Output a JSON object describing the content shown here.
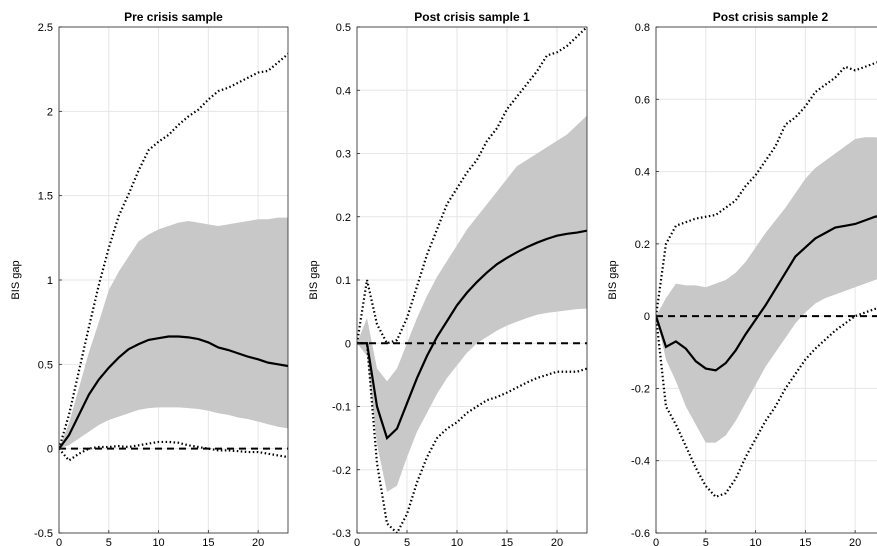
{
  "chart_data": [
    {
      "type": "line",
      "title": "Pre crisis sample",
      "ylabel": "BIS gap",
      "xlabel": "",
      "xlim": [
        0,
        23
      ],
      "ylim": [
        -0.5,
        2.5
      ],
      "xticks": [
        0,
        5,
        10,
        15,
        20
      ],
      "yticks": [
        -0.5,
        0,
        0.5,
        1,
        1.5,
        2,
        2.5
      ],
      "ytick_labels": [
        "-0.5",
        "0",
        "0.5",
        "1",
        "1.5",
        "2",
        "2.5"
      ],
      "grid": true,
      "x": [
        0,
        1,
        2,
        3,
        4,
        5,
        6,
        7,
        8,
        9,
        10,
        11,
        12,
        13,
        14,
        15,
        16,
        17,
        18,
        19,
        20,
        21,
        22,
        23
      ],
      "median": [
        0,
        0.08,
        0.2,
        0.32,
        0.41,
        0.48,
        0.54,
        0.59,
        0.62,
        0.645,
        0.655,
        0.665,
        0.665,
        0.66,
        0.65,
        0.63,
        0.6,
        0.585,
        0.565,
        0.545,
        0.53,
        0.51,
        0.5,
        0.49
      ],
      "band_lower": [
        0,
        0.02,
        0.06,
        0.1,
        0.14,
        0.17,
        0.19,
        0.21,
        0.23,
        0.24,
        0.245,
        0.245,
        0.245,
        0.24,
        0.235,
        0.225,
        0.21,
        0.2,
        0.185,
        0.175,
        0.16,
        0.145,
        0.13,
        0.12
      ],
      "band_upper": [
        0,
        0.15,
        0.36,
        0.57,
        0.75,
        0.94,
        1.05,
        1.14,
        1.23,
        1.27,
        1.3,
        1.32,
        1.34,
        1.35,
        1.34,
        1.33,
        1.32,
        1.33,
        1.34,
        1.35,
        1.36,
        1.36,
        1.37,
        1.37
      ],
      "outer_lower": [
        0,
        -0.07,
        -0.03,
        0,
        0.01,
        0.01,
        0.015,
        0.01,
        0.02,
        0.03,
        0.04,
        0.04,
        0.035,
        0.02,
        0.01,
        0,
        -0.01,
        -0.01,
        -0.015,
        -0.02,
        -0.02,
        -0.03,
        -0.04,
        -0.05
      ],
      "outer_upper": [
        0,
        0.2,
        0.46,
        0.72,
        0.97,
        1.19,
        1.38,
        1.51,
        1.65,
        1.77,
        1.82,
        1.86,
        1.92,
        1.97,
        2.01,
        2.07,
        2.12,
        2.14,
        2.17,
        2.2,
        2.23,
        2.24,
        2.29,
        2.34
      ],
      "reference": 0
    },
    {
      "type": "line",
      "title": "Post crisis sample 1",
      "ylabel": "BIS gap",
      "xlabel": "",
      "xlim": [
        0,
        23
      ],
      "ylim": [
        -0.3,
        0.5
      ],
      "xticks": [
        0,
        5,
        10,
        15,
        20
      ],
      "yticks": [
        -0.3,
        -0.2,
        -0.1,
        0,
        0.1,
        0.2,
        0.3,
        0.4,
        0.5
      ],
      "ytick_labels": [
        "-0.3",
        "-0.2",
        "-0.1",
        "0",
        "0.1",
        "0.2",
        "0.3",
        "0.4",
        "0.5"
      ],
      "grid": true,
      "x": [
        0,
        1,
        2,
        3,
        4,
        5,
        6,
        7,
        8,
        9,
        10,
        11,
        12,
        13,
        14,
        15,
        16,
        17,
        18,
        19,
        20,
        21,
        22,
        23
      ],
      "median": [
        0,
        0,
        -0.1,
        -0.15,
        -0.135,
        -0.095,
        -0.055,
        -0.02,
        0.01,
        0.035,
        0.06,
        0.08,
        0.097,
        0.112,
        0.125,
        0.135,
        0.144,
        0.152,
        0.159,
        0.165,
        0.17,
        0.173,
        0.175,
        0.178
      ],
      "band_lower": [
        0,
        -0.02,
        -0.16,
        -0.235,
        -0.225,
        -0.18,
        -0.14,
        -0.11,
        -0.08,
        -0.055,
        -0.035,
        -0.015,
        0,
        0.01,
        0.02,
        0.028,
        0.034,
        0.04,
        0.045,
        0.048,
        0.05,
        0.052,
        0.054,
        0.055
      ],
      "band_upper": [
        0,
        0.04,
        -0.04,
        -0.06,
        -0.04,
        0,
        0.04,
        0.075,
        0.105,
        0.13,
        0.155,
        0.18,
        0.2,
        0.22,
        0.24,
        0.26,
        0.28,
        0.29,
        0.3,
        0.31,
        0.32,
        0.33,
        0.345,
        0.36
      ],
      "outer_lower": [
        0,
        0,
        -0.19,
        -0.285,
        -0.3,
        -0.27,
        -0.22,
        -0.18,
        -0.15,
        -0.135,
        -0.125,
        -0.11,
        -0.1,
        -0.09,
        -0.085,
        -0.078,
        -0.07,
        -0.062,
        -0.055,
        -0.05,
        -0.045,
        -0.045,
        -0.045,
        -0.04
      ],
      "outer_upper": [
        0,
        0.1,
        0.03,
        0,
        0.005,
        0.04,
        0.09,
        0.14,
        0.18,
        0.22,
        0.245,
        0.27,
        0.29,
        0.32,
        0.34,
        0.37,
        0.39,
        0.41,
        0.43,
        0.455,
        0.46,
        0.47,
        0.485,
        0.5
      ],
      "reference": 0
    },
    {
      "type": "line",
      "title": "Post crisis sample 2",
      "ylabel": "BIS gap",
      "xlabel": "",
      "xlim": [
        0,
        23
      ],
      "ylim": [
        -0.6,
        0.8
      ],
      "xticks": [
        0,
        5,
        10,
        15,
        20
      ],
      "yticks": [
        -0.6,
        -0.4,
        -0.2,
        0,
        0.2,
        0.4,
        0.6,
        0.8
      ],
      "ytick_labels": [
        "-0.6",
        "-0.4",
        "-0.2",
        "0",
        "0.2",
        "0.4",
        "0.6",
        "0.8"
      ],
      "grid": true,
      "x": [
        0,
        1,
        2,
        3,
        4,
        5,
        6,
        7,
        8,
        9,
        10,
        11,
        12,
        13,
        14,
        15,
        16,
        17,
        18,
        19,
        20,
        21,
        22,
        23
      ],
      "median": [
        0,
        -0.085,
        -0.07,
        -0.09,
        -0.125,
        -0.145,
        -0.15,
        -0.13,
        -0.095,
        -0.05,
        -0.01,
        0.03,
        0.075,
        0.12,
        0.165,
        0.19,
        0.215,
        0.23,
        0.245,
        0.25,
        0.255,
        0.265,
        0.275,
        0.28
      ],
      "band_lower": [
        0,
        -0.12,
        -0.18,
        -0.25,
        -0.3,
        -0.35,
        -0.35,
        -0.33,
        -0.29,
        -0.24,
        -0.19,
        -0.14,
        -0.1,
        -0.06,
        -0.02,
        0.01,
        0.035,
        0.05,
        0.06,
        0.07,
        0.08,
        0.09,
        0.1,
        0.11
      ],
      "band_upper": [
        0,
        0.05,
        0.09,
        0.085,
        0.085,
        0.08,
        0.09,
        0.1,
        0.12,
        0.15,
        0.19,
        0.23,
        0.265,
        0.3,
        0.34,
        0.38,
        0.41,
        0.43,
        0.45,
        0.47,
        0.49,
        0.495,
        0.495,
        0.49
      ],
      "outer_lower": [
        0,
        -0.25,
        -0.3,
        -0.36,
        -0.42,
        -0.47,
        -0.5,
        -0.49,
        -0.45,
        -0.39,
        -0.34,
        -0.29,
        -0.25,
        -0.2,
        -0.16,
        -0.12,
        -0.09,
        -0.065,
        -0.04,
        -0.02,
        0,
        0.01,
        0.02,
        0.03
      ],
      "outer_upper": [
        0,
        0.2,
        0.25,
        0.26,
        0.27,
        0.275,
        0.28,
        0.3,
        0.32,
        0.36,
        0.39,
        0.43,
        0.47,
        0.53,
        0.55,
        0.58,
        0.62,
        0.64,
        0.66,
        0.69,
        0.68,
        0.69,
        0.7,
        0.71
      ],
      "reference": 0
    }
  ]
}
